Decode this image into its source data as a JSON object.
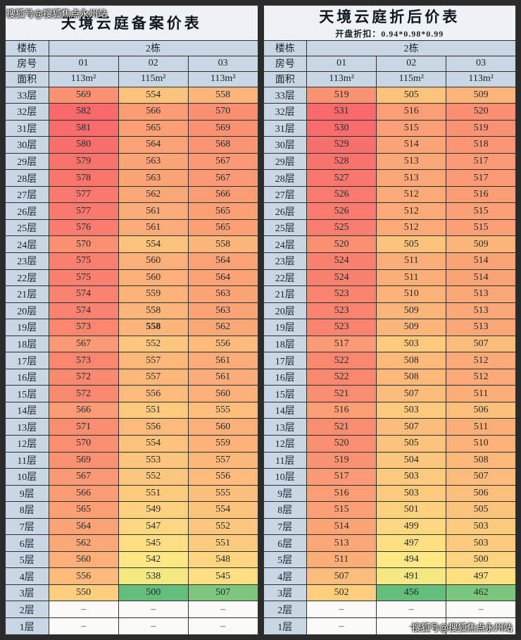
{
  "watermarks": {
    "top_left": "搜狐号@搜狐焦点永州站",
    "bottom_right": "搜狐号@搜狐焦点永州站"
  },
  "colors": {
    "page_bg": "#2b2b2b",
    "border": "#2e2e2e",
    "title_bg": "#eef1f5",
    "header_bg": "#c9d6e3",
    "empty_bg": "#fbfaf7",
    "scale": [
      "#63BE7B",
      "#FFEB84",
      "#F8696B"
    ]
  },
  "chart_data": [
    {
      "type": "heatmap-table",
      "title": "天境云庭备案价表",
      "subtitle": "",
      "header": {
        "building_label": "楼栋",
        "building_value": "2栋",
        "room_label": "房号",
        "rooms": [
          "01",
          "02",
          "03"
        ],
        "area_label": "面积",
        "areas": [
          "113m²",
          "115m²",
          "113m²"
        ]
      },
      "bold_cells": [
        {
          "row": 14,
          "col": 1
        }
      ],
      "rows": [
        {
          "floor": "33层",
          "values": [
            569,
            554,
            558
          ]
        },
        {
          "floor": "32层",
          "values": [
            582,
            566,
            570
          ]
        },
        {
          "floor": "31层",
          "values": [
            581,
            565,
            569
          ]
        },
        {
          "floor": "30层",
          "values": [
            580,
            564,
            568
          ]
        },
        {
          "floor": "29层",
          "values": [
            579,
            563,
            567
          ]
        },
        {
          "floor": "28层",
          "values": [
            578,
            563,
            567
          ]
        },
        {
          "floor": "27层",
          "values": [
            577,
            562,
            566
          ]
        },
        {
          "floor": "26层",
          "values": [
            577,
            561,
            565
          ]
        },
        {
          "floor": "25层",
          "values": [
            576,
            561,
            565
          ]
        },
        {
          "floor": "24层",
          "values": [
            570,
            554,
            558
          ]
        },
        {
          "floor": "23层",
          "values": [
            575,
            560,
            564
          ]
        },
        {
          "floor": "22层",
          "values": [
            575,
            560,
            564
          ]
        },
        {
          "floor": "21层",
          "values": [
            574,
            559,
            563
          ]
        },
        {
          "floor": "20层",
          "values": [
            574,
            558,
            563
          ]
        },
        {
          "floor": "19层",
          "values": [
            573,
            558,
            562
          ]
        },
        {
          "floor": "18层",
          "values": [
            567,
            552,
            556
          ]
        },
        {
          "floor": "17层",
          "values": [
            573,
            557,
            561
          ]
        },
        {
          "floor": "16层",
          "values": [
            572,
            557,
            561
          ]
        },
        {
          "floor": "15层",
          "values": [
            572,
            556,
            560
          ]
        },
        {
          "floor": "14层",
          "values": [
            566,
            551,
            555
          ]
        },
        {
          "floor": "13层",
          "values": [
            571,
            556,
            560
          ]
        },
        {
          "floor": "12层",
          "values": [
            570,
            554,
            559
          ]
        },
        {
          "floor": "11层",
          "values": [
            569,
            553,
            557
          ]
        },
        {
          "floor": "10层",
          "values": [
            567,
            552,
            556
          ]
        },
        {
          "floor": "9层",
          "values": [
            566,
            551,
            555
          ]
        },
        {
          "floor": "8层",
          "values": [
            565,
            549,
            554
          ]
        },
        {
          "floor": "7层",
          "values": [
            564,
            547,
            552
          ]
        },
        {
          "floor": "6层",
          "values": [
            562,
            545,
            551
          ]
        },
        {
          "floor": "5层",
          "values": [
            560,
            542,
            548
          ]
        },
        {
          "floor": "4层",
          "values": [
            556,
            538,
            545
          ]
        },
        {
          "floor": "3层",
          "values": [
            550,
            500,
            507
          ]
        },
        {
          "floor": "2层",
          "values": [
            "–",
            "–",
            "–"
          ]
        },
        {
          "floor": "1层",
          "values": [
            "–",
            "–",
            "–"
          ]
        }
      ]
    },
    {
      "type": "heatmap-table",
      "title": "天境云庭折后价表",
      "subtitle": "开盘折扣：0.94*0.98*0.99",
      "header": {
        "building_label": "楼栋",
        "building_value": "2栋",
        "room_label": "房号",
        "rooms": [
          "01",
          "02",
          "03"
        ],
        "area_label": "面积",
        "areas": [
          "113m²",
          "115m²",
          "113m²"
        ]
      },
      "bold_cells": [],
      "rows": [
        {
          "floor": "33层",
          "values": [
            519,
            505,
            509
          ]
        },
        {
          "floor": "32层",
          "values": [
            531,
            516,
            520
          ]
        },
        {
          "floor": "31层",
          "values": [
            530,
            515,
            519
          ]
        },
        {
          "floor": "30层",
          "values": [
            529,
            514,
            518
          ]
        },
        {
          "floor": "29层",
          "values": [
            528,
            513,
            517
          ]
        },
        {
          "floor": "28层",
          "values": [
            527,
            513,
            517
          ]
        },
        {
          "floor": "27层",
          "values": [
            526,
            512,
            516
          ]
        },
        {
          "floor": "26层",
          "values": [
            526,
            512,
            515
          ]
        },
        {
          "floor": "25层",
          "values": [
            525,
            512,
            515
          ]
        },
        {
          "floor": "24层",
          "values": [
            520,
            505,
            509
          ]
        },
        {
          "floor": "23层",
          "values": [
            524,
            511,
            514
          ]
        },
        {
          "floor": "22层",
          "values": [
            524,
            511,
            514
          ]
        },
        {
          "floor": "21层",
          "values": [
            523,
            510,
            513
          ]
        },
        {
          "floor": "20层",
          "values": [
            523,
            509,
            513
          ]
        },
        {
          "floor": "19层",
          "values": [
            523,
            509,
            513
          ]
        },
        {
          "floor": "18层",
          "values": [
            517,
            503,
            507
          ]
        },
        {
          "floor": "17层",
          "values": [
            522,
            508,
            512
          ]
        },
        {
          "floor": "16层",
          "values": [
            522,
            508,
            512
          ]
        },
        {
          "floor": "15层",
          "values": [
            521,
            507,
            511
          ]
        },
        {
          "floor": "14层",
          "values": [
            516,
            503,
            506
          ]
        },
        {
          "floor": "13层",
          "values": [
            521,
            507,
            511
          ]
        },
        {
          "floor": "12层",
          "values": [
            520,
            505,
            510
          ]
        },
        {
          "floor": "11层",
          "values": [
            519,
            504,
            508
          ]
        },
        {
          "floor": "10层",
          "values": [
            517,
            503,
            507
          ]
        },
        {
          "floor": "9层",
          "values": [
            516,
            503,
            506
          ]
        },
        {
          "floor": "8层",
          "values": [
            515,
            501,
            505
          ]
        },
        {
          "floor": "7层",
          "values": [
            514,
            499,
            503
          ]
        },
        {
          "floor": "6层",
          "values": [
            513,
            497,
            503
          ]
        },
        {
          "floor": "5层",
          "values": [
            511,
            494,
            500
          ]
        },
        {
          "floor": "4层",
          "values": [
            507,
            491,
            497
          ]
        },
        {
          "floor": "3层",
          "values": [
            502,
            456,
            462
          ]
        },
        {
          "floor": "2层",
          "values": [
            "–",
            "–",
            "–"
          ]
        },
        {
          "floor": "1层",
          "values": [
            "–",
            "–",
            "–"
          ]
        }
      ]
    }
  ]
}
